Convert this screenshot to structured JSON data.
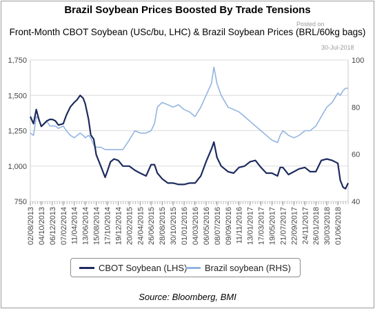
{
  "title": "Brazil Soybean Prices Boosted By Trade Tensions",
  "subtitle": "Front-Month CBOT Soybean (USc/bu, LHC) & Brazil Soybean Prices (BRL/60kg bags)",
  "posted_label": "Posted on",
  "posted_date": "30-Jul-2018",
  "source": "Source: Bloomberg, BMI",
  "colors": {
    "cbot": "#1c2a5e",
    "brazil": "#92b4e0"
  },
  "chart_data": {
    "type": "line",
    "y_left": {
      "min": 750,
      "max": 1750,
      "ticks": [
        "750",
        "1,000",
        "1,250",
        "1,500",
        "1,750"
      ],
      "tick_values": [
        750,
        1000,
        1250,
        1500,
        1750
      ]
    },
    "y_right": {
      "min": 40,
      "max": 100,
      "ticks": [
        "40",
        "60",
        "80",
        "100"
      ],
      "tick_values": [
        40,
        60,
        80,
        100
      ]
    },
    "x_ticks": [
      "02/08/2013",
      "04/10/2013",
      "06/12/2013",
      "07/02/2014",
      "11/04/2014",
      "13/06/2014",
      "15/08/2014",
      "17/10/2014",
      "19/12/2014",
      "20/02/2015",
      "24/04/2015",
      "26/06/2015",
      "28/08/2015",
      "30/10/2015",
      "01/01/2016",
      "04/03/2016",
      "06/05/2016",
      "08/07/2016",
      "09/09/2016",
      "11/11/2016",
      "13/01/2017",
      "17/03/2017",
      "19/05/2017",
      "21/07/2017",
      "22/09/2017",
      "24/11/2017",
      "26/01/2018",
      "30/03/2018",
      "01/06/2018"
    ],
    "x_range": [
      "02/08/2013",
      "30/07/2018"
    ],
    "grid": true,
    "legend_position": "bottom",
    "series": [
      {
        "name": "CBOT Soybean (LHS)",
        "axis": "left",
        "points": [
          [
            "02/08/2013",
            1350
          ],
          [
            "20/08/2013",
            1300
          ],
          [
            "05/09/2013",
            1400
          ],
          [
            "20/09/2013",
            1330
          ],
          [
            "04/10/2013",
            1280
          ],
          [
            "20/10/2013",
            1300
          ],
          [
            "05/11/2013",
            1320
          ],
          [
            "22/11/2013",
            1330
          ],
          [
            "06/12/2013",
            1330
          ],
          [
            "24/12/2013",
            1320
          ],
          [
            "10/01/2014",
            1290
          ],
          [
            "07/02/2014",
            1300
          ],
          [
            "25/02/2014",
            1360
          ],
          [
            "20/03/2014",
            1420
          ],
          [
            "11/04/2014",
            1450
          ],
          [
            "28/04/2014",
            1470
          ],
          [
            "15/05/2014",
            1500
          ],
          [
            "01/06/2014",
            1480
          ],
          [
            "13/06/2014",
            1440
          ],
          [
            "02/07/2014",
            1330
          ],
          [
            "15/07/2014",
            1220
          ],
          [
            "01/08/2014",
            1190
          ],
          [
            "15/08/2014",
            1080
          ],
          [
            "10/09/2014",
            1000
          ],
          [
            "05/10/2014",
            920
          ],
          [
            "17/10/2014",
            960
          ],
          [
            "05/11/2014",
            1030
          ],
          [
            "25/11/2014",
            1050
          ],
          [
            "19/12/2014",
            1040
          ],
          [
            "15/01/2015",
            1000
          ],
          [
            "20/02/2015",
            1000
          ],
          [
            "25/03/2015",
            970
          ],
          [
            "24/04/2015",
            950
          ],
          [
            "28/05/2015",
            930
          ],
          [
            "26/06/2015",
            1010
          ],
          [
            "15/07/2015",
            1010
          ],
          [
            "01/08/2015",
            950
          ],
          [
            "28/08/2015",
            910
          ],
          [
            "30/09/2015",
            880
          ],
          [
            "30/10/2015",
            880
          ],
          [
            "30/11/2015",
            870
          ],
          [
            "01/01/2016",
            870
          ],
          [
            "01/02/2016",
            880
          ],
          [
            "04/03/2016",
            880
          ],
          [
            "06/04/2016",
            930
          ],
          [
            "06/05/2016",
            1030
          ],
          [
            "06/06/2016",
            1120
          ],
          [
            "20/06/2016",
            1170
          ],
          [
            "08/07/2016",
            1060
          ],
          [
            "01/08/2016",
            1000
          ],
          [
            "09/09/2016",
            960
          ],
          [
            "11/10/2016",
            950
          ],
          [
            "11/11/2016",
            990
          ],
          [
            "13/12/2016",
            1000
          ],
          [
            "13/01/2017",
            1030
          ],
          [
            "13/02/2017",
            1040
          ],
          [
            "17/03/2017",
            990
          ],
          [
            "17/04/2017",
            950
          ],
          [
            "19/05/2017",
            950
          ],
          [
            "20/06/2017",
            930
          ],
          [
            "05/07/2017",
            990
          ],
          [
            "21/07/2017",
            990
          ],
          [
            "22/08/2017",
            940
          ],
          [
            "22/09/2017",
            960
          ],
          [
            "22/10/2017",
            980
          ],
          [
            "24/11/2017",
            990
          ],
          [
            "24/12/2017",
            960
          ],
          [
            "26/01/2018",
            960
          ],
          [
            "26/02/2018",
            1040
          ],
          [
            "30/03/2018",
            1050
          ],
          [
            "30/04/2018",
            1040
          ],
          [
            "01/06/2018",
            1020
          ],
          [
            "15/06/2018",
            900
          ],
          [
            "01/07/2018",
            850
          ],
          [
            "15/07/2018",
            840
          ],
          [
            "30/07/2018",
            880
          ]
        ]
      },
      {
        "name": "Brazil soybean (RHS)",
        "axis": "right",
        "points": [
          [
            "02/08/2013",
            69
          ],
          [
            "20/08/2013",
            68
          ],
          [
            "05/09/2013",
            76
          ],
          [
            "20/09/2013",
            75
          ],
          [
            "04/10/2013",
            72
          ],
          [
            "20/10/2013",
            73
          ],
          [
            "05/11/2013",
            74
          ],
          [
            "22/11/2013",
            72
          ],
          [
            "06/12/2013",
            72
          ],
          [
            "24/12/2013",
            72
          ],
          [
            "10/01/2014",
            71
          ],
          [
            "07/02/2014",
            72
          ],
          [
            "25/02/2014",
            70
          ],
          [
            "20/03/2014",
            68
          ],
          [
            "11/04/2014",
            67
          ],
          [
            "28/04/2014",
            68
          ],
          [
            "15/05/2014",
            69
          ],
          [
            "01/06/2014",
            68
          ],
          [
            "13/06/2014",
            67
          ],
          [
            "02/07/2014",
            68
          ],
          [
            "15/07/2014",
            67
          ],
          [
            "01/08/2014",
            64
          ],
          [
            "15/08/2014",
            63
          ],
          [
            "10/09/2014",
            63
          ],
          [
            "05/10/2014",
            62
          ],
          [
            "17/10/2014",
            62
          ],
          [
            "05/11/2014",
            62
          ],
          [
            "25/11/2014",
            62
          ],
          [
            "19/12/2014",
            62
          ],
          [
            "15/01/2015",
            62
          ],
          [
            "20/02/2015",
            66
          ],
          [
            "25/03/2015",
            70
          ],
          [
            "24/04/2015",
            69
          ],
          [
            "28/05/2015",
            69
          ],
          [
            "26/06/2015",
            70
          ],
          [
            "15/07/2015",
            73
          ],
          [
            "01/08/2015",
            80
          ],
          [
            "28/08/2015",
            82
          ],
          [
            "30/09/2015",
            81
          ],
          [
            "30/10/2015",
            80
          ],
          [
            "30/11/2015",
            81
          ],
          [
            "01/01/2016",
            79
          ],
          [
            "01/02/2016",
            78
          ],
          [
            "04/03/2016",
            76
          ],
          [
            "06/04/2016",
            80
          ],
          [
            "06/05/2016",
            85
          ],
          [
            "06/06/2016",
            90
          ],
          [
            "20/06/2016",
            97
          ],
          [
            "08/07/2016",
            90
          ],
          [
            "01/08/2016",
            85
          ],
          [
            "09/09/2016",
            80
          ],
          [
            "11/10/2016",
            79
          ],
          [
            "11/11/2016",
            78
          ],
          [
            "13/12/2016",
            76
          ],
          [
            "13/01/2017",
            74
          ],
          [
            "13/02/2017",
            72
          ],
          [
            "17/03/2017",
            70
          ],
          [
            "17/04/2017",
            68
          ],
          [
            "19/05/2017",
            66
          ],
          [
            "20/06/2017",
            65
          ],
          [
            "05/07/2017",
            68
          ],
          [
            "21/07/2017",
            70
          ],
          [
            "22/08/2017",
            68
          ],
          [
            "22/09/2017",
            67
          ],
          [
            "22/10/2017",
            68
          ],
          [
            "24/11/2017",
            70
          ],
          [
            "24/12/2017",
            70
          ],
          [
            "26/01/2018",
            72
          ],
          [
            "26/02/2018",
            76
          ],
          [
            "30/03/2018",
            80
          ],
          [
            "30/04/2018",
            82
          ],
          [
            "01/06/2018",
            86
          ],
          [
            "15/06/2018",
            85
          ],
          [
            "01/07/2018",
            87
          ],
          [
            "15/07/2018",
            88
          ],
          [
            "30/07/2018",
            88
          ]
        ]
      }
    ]
  }
}
